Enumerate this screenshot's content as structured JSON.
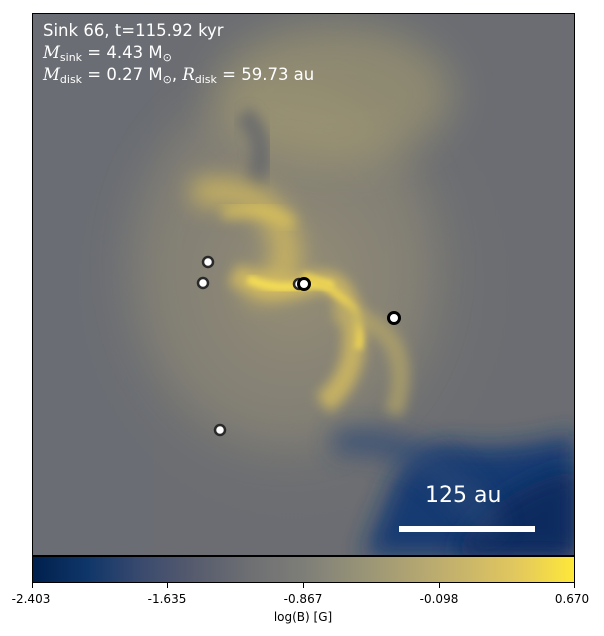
{
  "annotation": {
    "line1": "Sink 66, t=115.92 kyr",
    "m_sink_label": "M",
    "m_sink_sub": "sink",
    "m_sink_value": " = 4.43 M",
    "m_sink_unit_sub": "⊙",
    "m_disk_label": "M",
    "m_disk_sub": "disk",
    "m_disk_value": " = 0.27 M",
    "m_disk_unit_sub": "⊙",
    "r_disk_sep": ", ",
    "r_disk_label": "R",
    "r_disk_sub": "disk",
    "r_disk_value": " = 59.73 au"
  },
  "scale_bar": {
    "label": "125 au"
  },
  "colorbar": {
    "label": "log(B) [G]",
    "ticks": [
      "-2.403",
      "-1.635",
      "-0.867",
      "-0.098",
      "0.670"
    ],
    "colormap": "cividis",
    "min": -2.403,
    "max": 0.67
  },
  "colors": {
    "background": "#6f7073",
    "high_field": "#e8cc52",
    "low_field": "#0b2a5c"
  }
}
